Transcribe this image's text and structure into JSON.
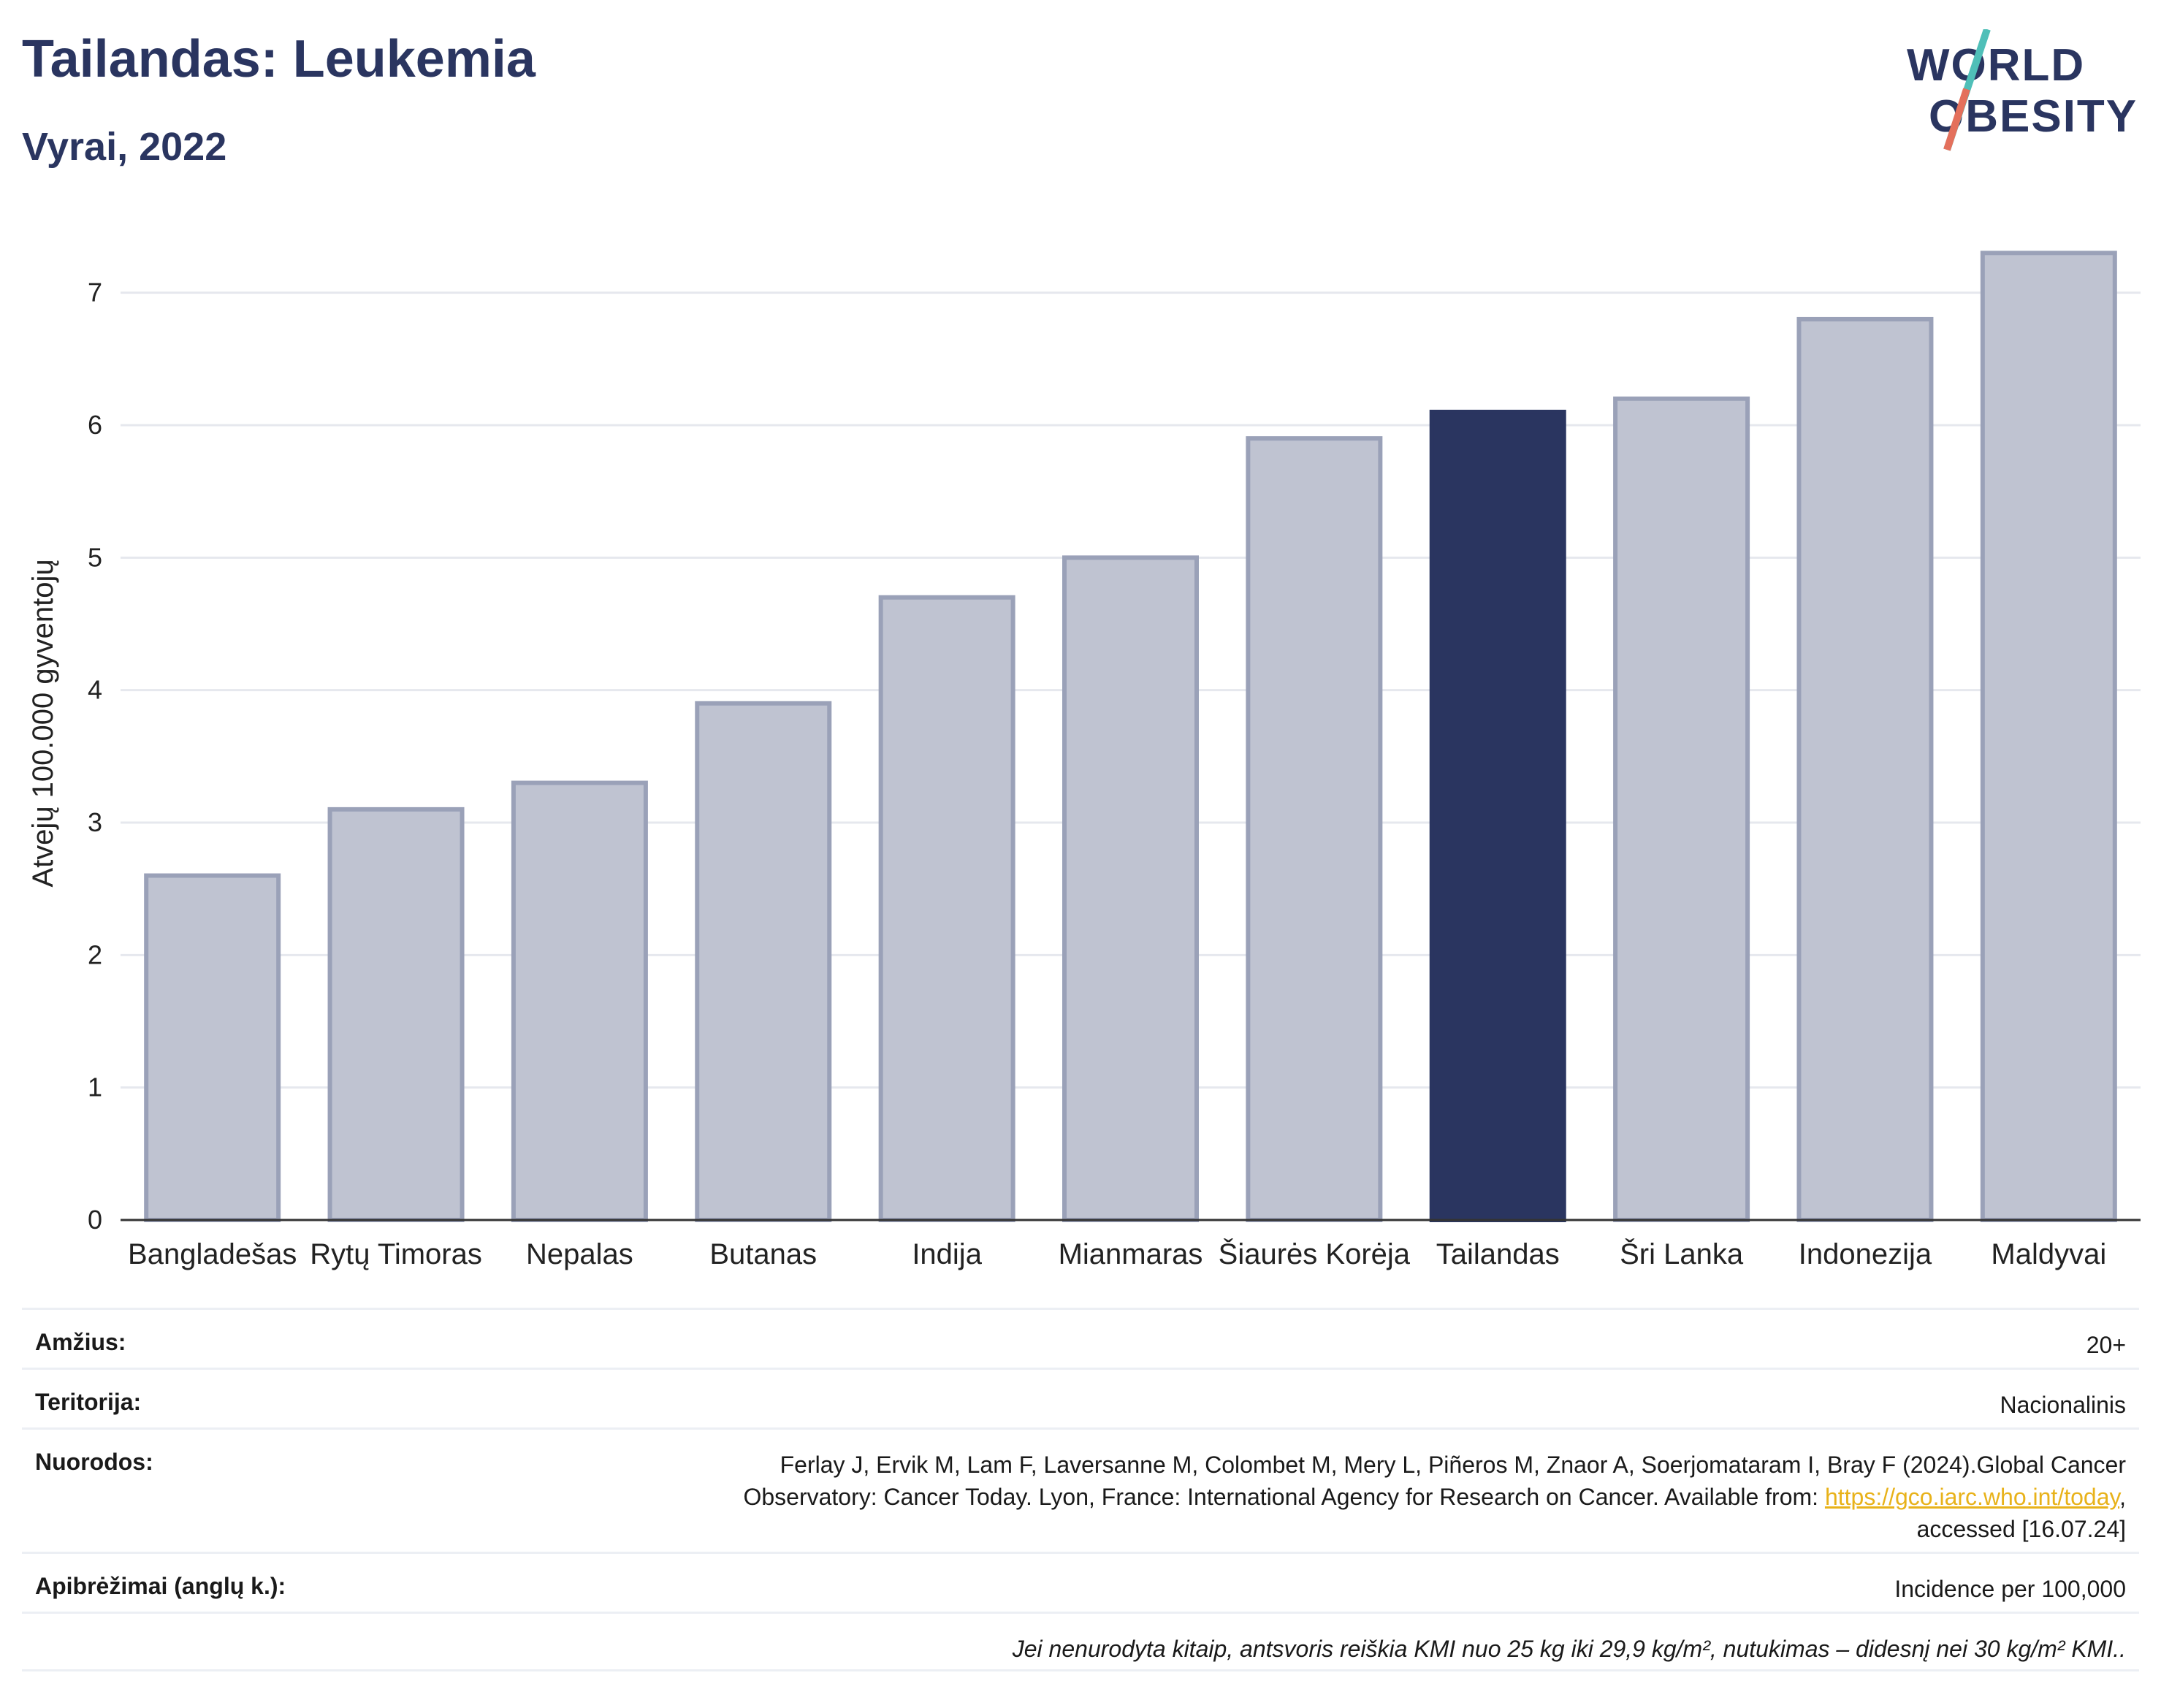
{
  "header": {
    "title": "Tailandas: Leukemia",
    "subtitle": "Vyrai, 2022"
  },
  "logo": {
    "line1": "WORLD",
    "line2": "OBESITY"
  },
  "colors": {
    "highlight": "#2a3560",
    "bar": "#bfc3d1",
    "bar_border": "#9aa1b8",
    "grid": "#e6e8ee"
  },
  "chart_data": {
    "type": "bar",
    "ylabel": "Atvejų 100.000 gyventojų",
    "xlabel": "",
    "ylim": [
      0,
      7.5
    ],
    "yticks": [
      0,
      1,
      2,
      3,
      4,
      5,
      6,
      7
    ],
    "grid": true,
    "highlight": "Tailandas",
    "categories": [
      "Bangladešas",
      "Rytų Timoras",
      "Nepalas",
      "Butanas",
      "Indija",
      "Mianmaras",
      "Šiaurės Korėja",
      "Tailandas",
      "Šri Lanka",
      "Indonezija",
      "Maldyvai"
    ],
    "values": [
      2.6,
      3.1,
      3.3,
      3.9,
      4.7,
      5.0,
      5.9,
      6.1,
      6.2,
      6.8,
      7.3
    ]
  },
  "info": {
    "age_label": "Amžius:",
    "age_value": "20+",
    "territory_label": "Teritorija:",
    "territory_value": "Nacionalinis",
    "refs_label": "Nuorodos:",
    "refs_line1": "Ferlay J, Ervik M, Lam F, Laversanne M, Colombet M, Mery L, Piñeros M, Znaor A, Soerjomataram I, Bray F (2024).Global Cancer",
    "refs_line2": "Observatory: Cancer Today. Lyon, France: International Agency for Research on Cancer. Available from: ",
    "refs_link": "https://gco.iarc.who.int/today",
    "refs_line2_end": ",",
    "refs_line3": "accessed [16.07.24]",
    "defs_label": "Apibrėžimai (anglų k.):",
    "defs_value": "Incidence per 100,000",
    "note": "Jei nenurodyta kitaip, antsvoris reiškia KMI nuo 25 kg iki 29,9 kg/m², nutukimas – didesnį nei 30 kg/m² KMI.."
  }
}
